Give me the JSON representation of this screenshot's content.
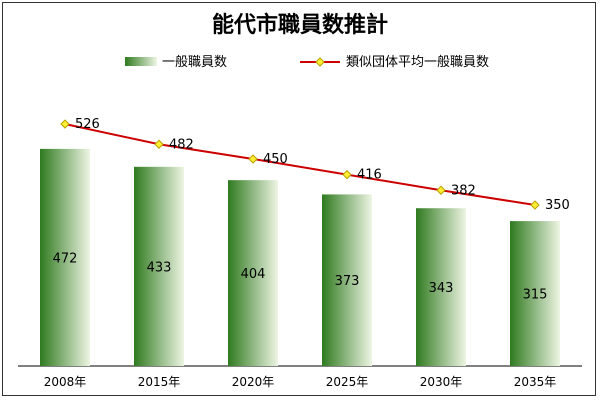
{
  "chart_data": {
    "type": "bar",
    "title": "能代市職員数推計",
    "categories": [
      "2008年",
      "2015年",
      "2020年",
      "2025年",
      "2030年",
      "2035年"
    ],
    "series": [
      {
        "name": "一般職員数",
        "kind": "bar",
        "values": [
          472,
          433,
          404,
          373,
          343,
          315
        ]
      },
      {
        "name": "類似団体平均一般職員数",
        "kind": "line",
        "values": [
          526,
          482,
          450,
          416,
          382,
          350
        ]
      }
    ],
    "ylim": [
      0,
      560
    ],
    "grid": false,
    "legend_position": "top",
    "colors": {
      "bar_dark": "#2f7a1f",
      "bar_light": "#eef5e4",
      "line": "#cc0000",
      "marker_fill": "#ffee33",
      "marker_stroke": "#b8a000"
    }
  }
}
